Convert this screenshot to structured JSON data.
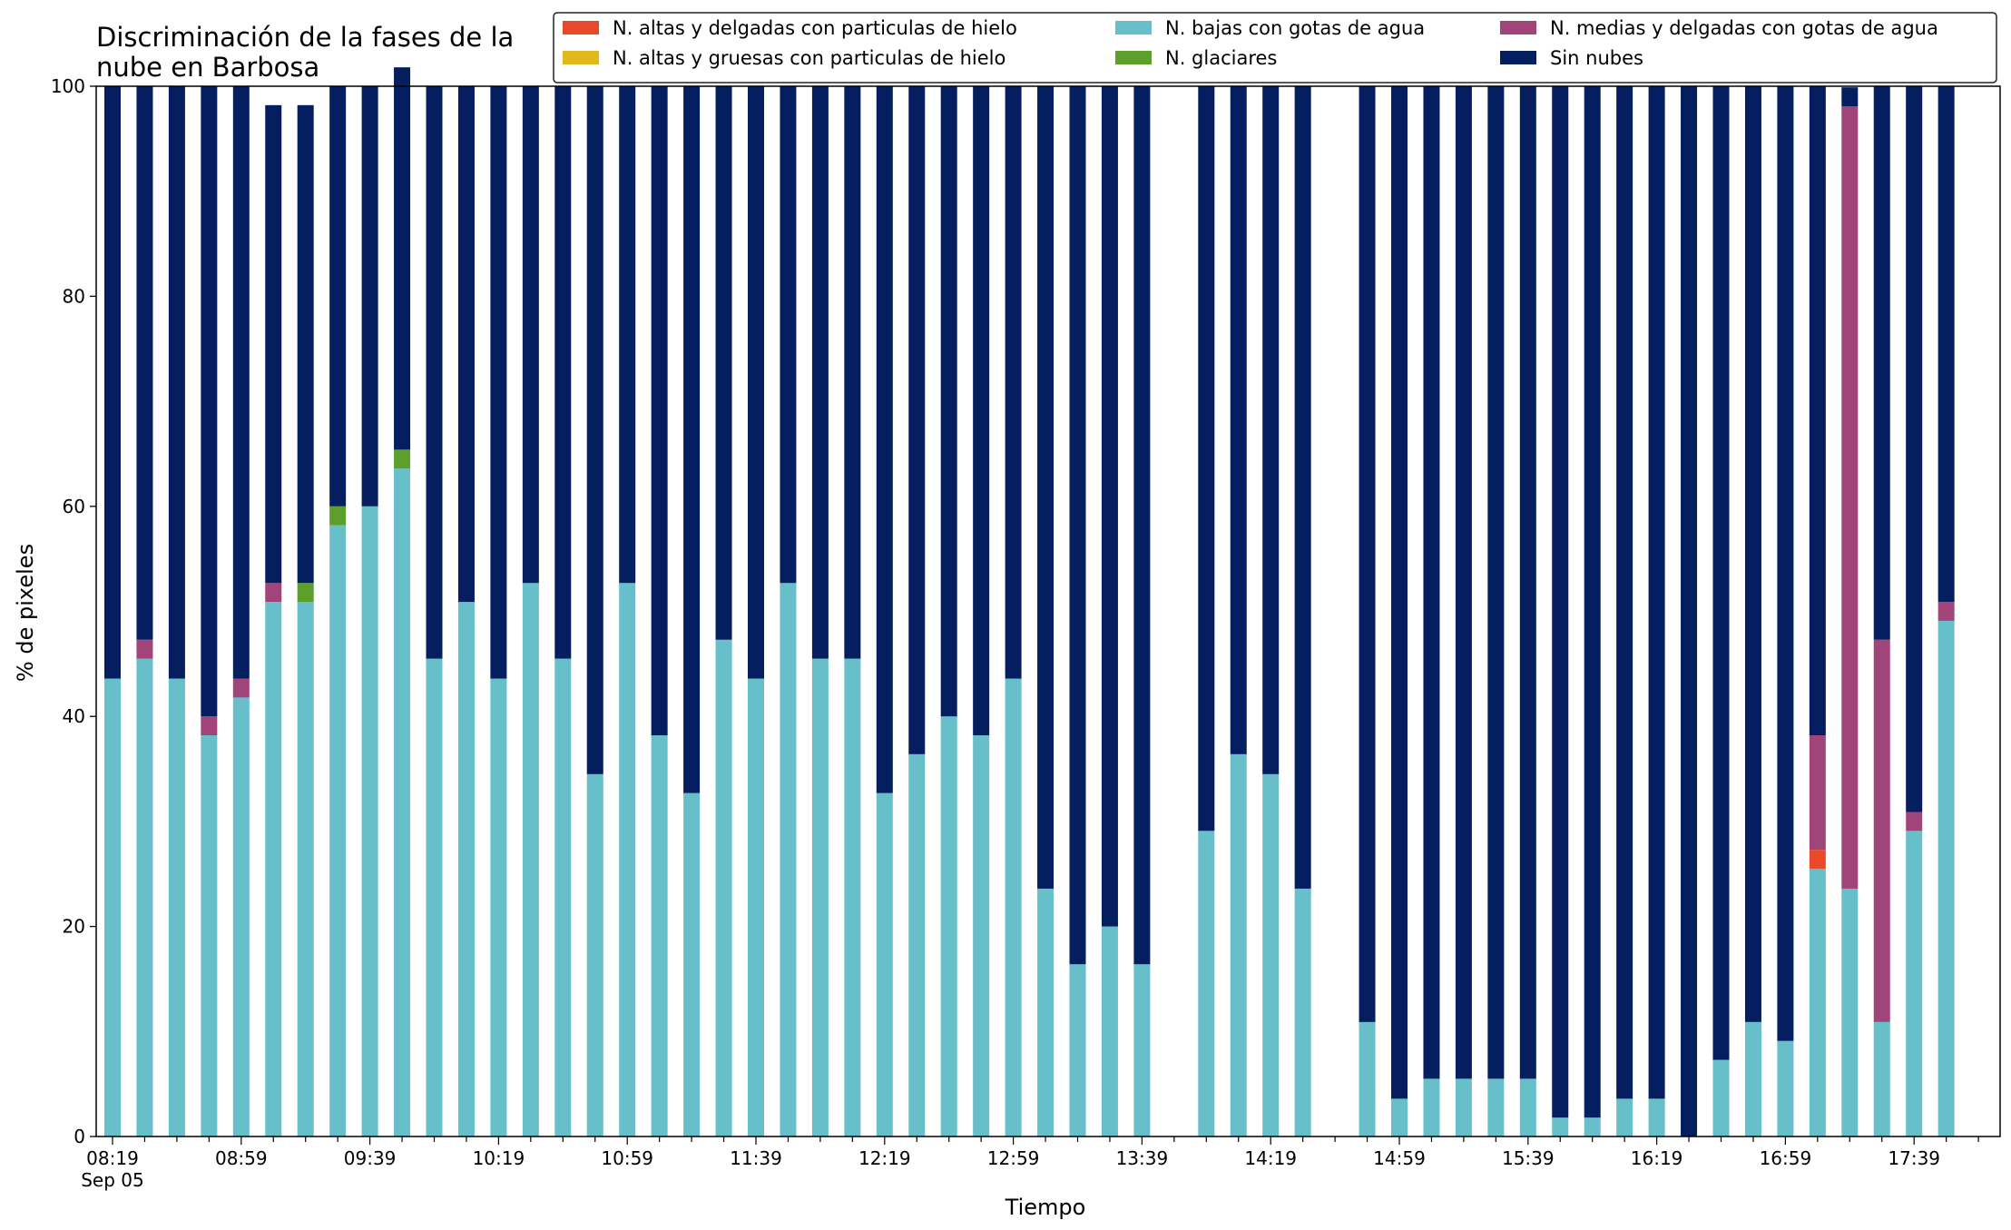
{
  "chart_data": {
    "type": "bar",
    "stacked": true,
    "title": [
      "Discriminación de la fases de la",
      "nube en Barbosa"
    ],
    "xlabel": "Tiempo",
    "ylabel": "% de pixeles",
    "ylim": [
      0,
      100
    ],
    "yticks": [
      "0",
      "20",
      "40",
      "60",
      "80",
      "100"
    ],
    "xticks": [
      "08:19",
      "08:59",
      "09:39",
      "10:19",
      "10:59",
      "11:39",
      "12:19",
      "12:59",
      "13:39",
      "14:19",
      "14:59",
      "15:39",
      "16:19",
      "16:59",
      "17:39"
    ],
    "xdate": "Sep 05",
    "grid": false,
    "legend_position": "top-right",
    "categories": [
      "08:19",
      "08:29",
      "08:39",
      "08:49",
      "08:59",
      "09:09",
      "09:19",
      "09:29",
      "09:39",
      "09:49",
      "09:59",
      "10:09",
      "10:19",
      "10:29",
      "10:39",
      "10:49",
      "10:59",
      "11:09",
      "11:19",
      "11:29",
      "11:39",
      "11:49",
      "11:59",
      "12:09",
      "12:19",
      "12:29",
      "12:39",
      "12:49",
      "12:59",
      "13:09",
      "13:19",
      "13:29",
      "13:39",
      "13:49",
      "13:59",
      "14:09",
      "14:19",
      "14:29",
      "14:39",
      "14:49",
      "14:59",
      "15:09",
      "15:19",
      "15:29",
      "15:39",
      "15:49",
      "15:59",
      "16:09",
      "16:19",
      "16:29",
      "16:39",
      "16:49",
      "16:59",
      "17:09",
      "17:19",
      "17:29",
      "17:39",
      "17:49"
    ],
    "series": [
      {
        "name": "N. altas y delgadas con particulas de hielo",
        "color": "#e8492a",
        "values": [
          0,
          0,
          0,
          0,
          0,
          0,
          0,
          0,
          0,
          0,
          0,
          0,
          0,
          0,
          0,
          0,
          0,
          0,
          0,
          0,
          0,
          0,
          0,
          0,
          0,
          0,
          0,
          0,
          0,
          0,
          0,
          0,
          0,
          null,
          0,
          0,
          0,
          0,
          null,
          0,
          0,
          0,
          0,
          0,
          0,
          0,
          0,
          0,
          0,
          0,
          0,
          0,
          0,
          1.8,
          0,
          0,
          0,
          0
        ]
      },
      {
        "name": "N. altas y gruesas con particulas de hielo",
        "color": "#e3b81d",
        "values": [
          0,
          0,
          0,
          0,
          0,
          0,
          0,
          0,
          0,
          0,
          0,
          0,
          0,
          0,
          0,
          0,
          0,
          0,
          0,
          0,
          0,
          0,
          0,
          0,
          0,
          0,
          0,
          0,
          0,
          0,
          0,
          0,
          0,
          null,
          0,
          0,
          0,
          0,
          null,
          0,
          0,
          0,
          0,
          0,
          0,
          0,
          0,
          0,
          0,
          0,
          0,
          0,
          0,
          0,
          0,
          0,
          0,
          0
        ]
      },
      {
        "name": "N. glaciares",
        "color": "#5c9f2a",
        "values": [
          0,
          0,
          0,
          0,
          0,
          0,
          1.8,
          1.8,
          0,
          1.8,
          0,
          0,
          0,
          0,
          0,
          0,
          0,
          0,
          0,
          0,
          0,
          0,
          0,
          0,
          0,
          0,
          0,
          0,
          0,
          0,
          0,
          0,
          0,
          null,
          0,
          0,
          0,
          0,
          null,
          0,
          0,
          0,
          0,
          0,
          0,
          0,
          0,
          0,
          0,
          0,
          0,
          0,
          0,
          0,
          0,
          0,
          0,
          0
        ]
      },
      {
        "name": "N. bajas con gotas de agua",
        "color": "#67bfca",
        "values": [
          43.6,
          45.5,
          43.6,
          38.2,
          41.8,
          50.9,
          50.9,
          58.2,
          60.0,
          63.6,
          45.5,
          50.9,
          43.6,
          52.7,
          45.5,
          34.5,
          52.7,
          38.2,
          32.7,
          47.3,
          43.6,
          52.7,
          45.5,
          45.5,
          32.7,
          36.4,
          40.0,
          38.2,
          43.6,
          23.6,
          16.4,
          20.0,
          16.4,
          null,
          29.1,
          36.4,
          34.5,
          23.6,
          null,
          10.9,
          3.6,
          5.5,
          5.5,
          5.5,
          5.5,
          1.8,
          1.8,
          3.6,
          3.6,
          0,
          7.3,
          10.9,
          9.1,
          25.5,
          23.6,
          10.9,
          29.1,
          49.1
        ]
      },
      {
        "name": "N. medias y delgadas con gotas de agua",
        "color": "#a0447a",
        "values": [
          0,
          1.8,
          0,
          1.8,
          1.8,
          1.8,
          0,
          0,
          0,
          0,
          0,
          0,
          0,
          0,
          0,
          0,
          0,
          0,
          0,
          0,
          0,
          0,
          0,
          0,
          0,
          0,
          0,
          0,
          0,
          0,
          0,
          0,
          0,
          null,
          0,
          0,
          0,
          0,
          null,
          0,
          0,
          0,
          0,
          0,
          0,
          0,
          0,
          0,
          0,
          0,
          0,
          0,
          0,
          10.9,
          74.5,
          36.4,
          1.8,
          1.8
        ]
      },
      {
        "name": "Sin nubes",
        "color": "#041e5f",
        "values": [
          56.4,
          52.7,
          56.4,
          60.0,
          56.4,
          45.5,
          45.5,
          40.0,
          40.0,
          36.4,
          54.5,
          49.1,
          56.4,
          47.3,
          54.5,
          65.5,
          47.3,
          61.8,
          67.3,
          52.7,
          56.4,
          47.3,
          54.5,
          54.5,
          67.3,
          63.6,
          60.0,
          61.8,
          56.4,
          76.4,
          83.6,
          80.0,
          83.6,
          null,
          70.9,
          63.6,
          65.5,
          76.4,
          null,
          89.1,
          96.4,
          94.5,
          94.5,
          94.5,
          94.5,
          98.2,
          98.2,
          96.4,
          96.4,
          100,
          92.7,
          89.1,
          90.9,
          61.8,
          1.8,
          52.7,
          69.1,
          49.1
        ]
      }
    ]
  }
}
